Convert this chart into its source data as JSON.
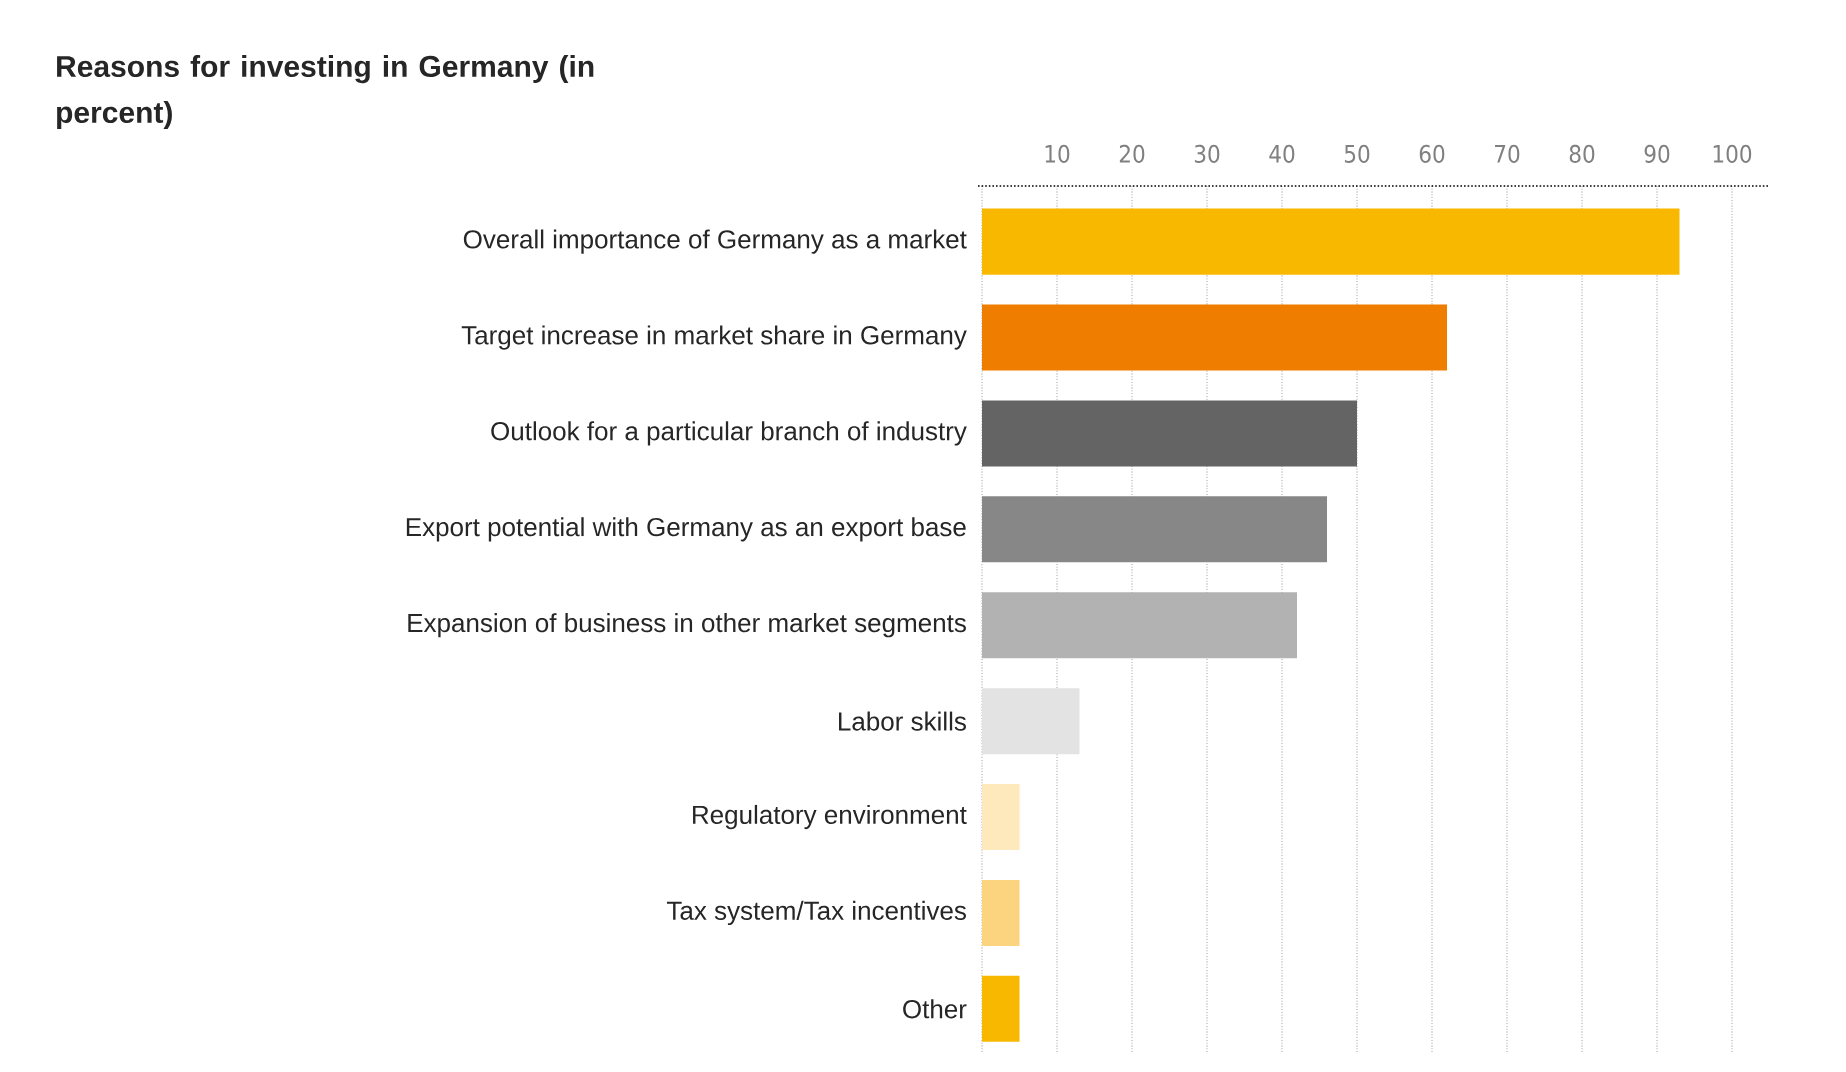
{
  "chart_data": {
    "type": "bar",
    "orientation": "horizontal",
    "title": "Reasons for investing in Germany (in percent)",
    "categories": [
      "Overall importance of Germany as a market",
      "Target increase in market share in Germany",
      "Outlook for a particular branch of industry",
      "Export potential with Germany as an export base",
      "Expansion of business in other market segments",
      "Labor skills",
      "Regulatory environment",
      "Tax system/Tax incentives",
      "Other"
    ],
    "values": [
      93,
      62,
      50,
      46,
      42,
      13,
      5,
      5,
      5
    ],
    "colors": [
      "#f9b800",
      "#ee7d00",
      "#646464",
      "#878787",
      "#b2b2b2",
      "#e3e3e3",
      "#fde9bb",
      "#fcd47f",
      "#f9b800"
    ],
    "xlim": [
      0,
      100
    ],
    "xticks": [
      {
        "value": 0,
        "label": null
      },
      10,
      20,
      30,
      40,
      50,
      60,
      70,
      80,
      90,
      100
    ],
    "grid": "x"
  }
}
